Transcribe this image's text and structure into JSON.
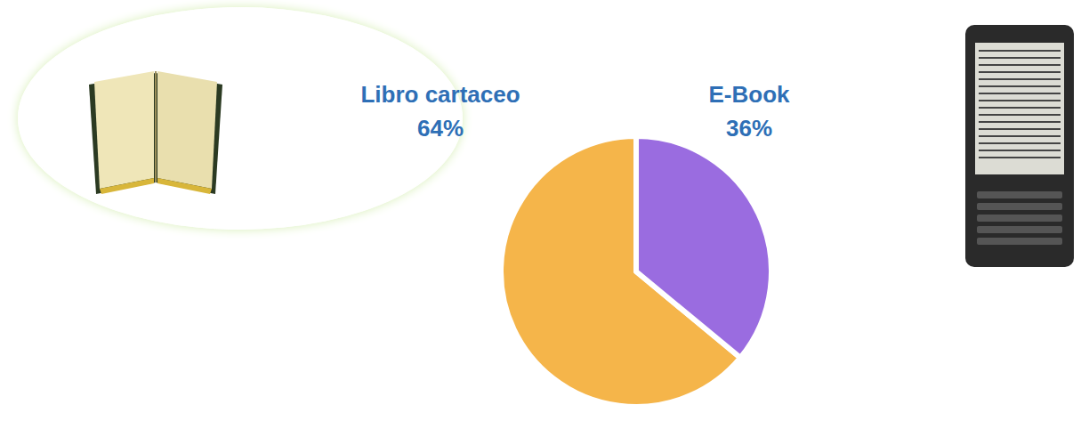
{
  "chart_data": {
    "type": "pie",
    "categories": [
      "Libro cartaceo",
      "E-Book"
    ],
    "values": [
      64,
      36
    ],
    "value_labels": [
      "64%",
      "36%"
    ],
    "colors": [
      "#f5b54a",
      "#9a6ce0"
    ],
    "data_labels": true
  }
}
